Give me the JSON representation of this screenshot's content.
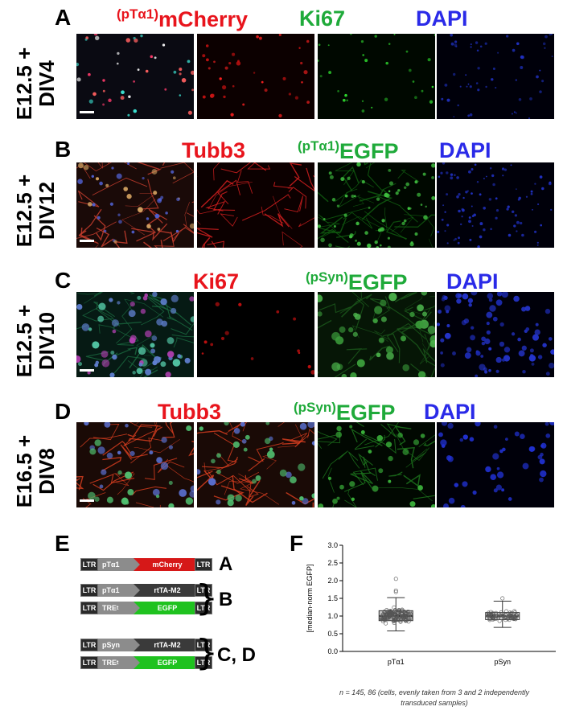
{
  "panels": [
    {
      "letter": "A",
      "row_label_line1": "E12.5 +",
      "row_label_line2": "DIV4",
      "channels": [
        {
          "prefix": "(pTα1)",
          "name": "mCherry",
          "color": "red"
        },
        {
          "prefix": "",
          "name": "Ki67",
          "color": "green"
        },
        {
          "prefix": "",
          "name": "DAPI",
          "color": "blue"
        }
      ]
    },
    {
      "letter": "B",
      "row_label_line1": "E12.5 +",
      "row_label_line2": "DIV12",
      "channels": [
        {
          "prefix": "",
          "name": "Tubb3",
          "color": "red"
        },
        {
          "prefix": "(pTα1)",
          "name": "EGFP",
          "color": "green"
        },
        {
          "prefix": "",
          "name": "DAPI",
          "color": "blue"
        }
      ]
    },
    {
      "letter": "C",
      "row_label_line1": "E12.5 +",
      "row_label_line2": "DIV10",
      "channels": [
        {
          "prefix": "",
          "name": "Ki67",
          "color": "red"
        },
        {
          "prefix": "(pSyn)",
          "name": "EGFP",
          "color": "green"
        },
        {
          "prefix": "",
          "name": "DAPI",
          "color": "blue"
        }
      ]
    },
    {
      "letter": "D",
      "row_label_line1": "E16.5 +",
      "row_label_line2": "DIV8",
      "channels": [
        {
          "prefix": "",
          "name": "Tubb3",
          "color": "red"
        },
        {
          "prefix": "(pSyn)",
          "name": "EGFP",
          "color": "green"
        },
        {
          "prefix": "",
          "name": "DAPI",
          "color": "blue"
        }
      ]
    }
  ],
  "constructs": {
    "letter": "E",
    "ltr": "LTR",
    "rows": [
      {
        "promoter": "pTα1",
        "gene": "mCherry",
        "gene_color": "#d61818"
      },
      {
        "promoter": "pTα1",
        "gene": "rtTA-M2",
        "gene_color": "#3a3a3a"
      },
      {
        "promoter": "TRE",
        "promoter_sub": "t",
        "gene": "EGFP",
        "gene_color": "#1fc21f"
      },
      {
        "promoter": "pSyn",
        "gene": "rtTA-M2",
        "gene_color": "#3a3a3a"
      },
      {
        "promoter": "TRE",
        "promoter_sub": "t",
        "gene": "EGFP",
        "gene_color": "#1fc21f"
      }
    ],
    "labels": [
      "A",
      "B",
      "C, D"
    ]
  },
  "plot": {
    "letter": "F",
    "footnote_line1": "n = 145, 86 (cells, evenly taken from 3 and 2 independently",
    "footnote_line2": "transduced samples)"
  },
  "colors": {
    "red": "#e8141c",
    "green": "#1faa3a",
    "blue": "#2a2ae8"
  },
  "chart_data": {
    "type": "box",
    "ylabel": "[median-norm EGFP]",
    "ylim": [
      0.0,
      3.0
    ],
    "yticks": [
      "0.0",
      "0.5",
      "1.0",
      "1.5",
      "2.0",
      "2.5",
      "3.0"
    ],
    "categories": [
      "pTα1",
      "pSyn"
    ],
    "boxes": [
      {
        "name": "pTα1",
        "n": 145,
        "min": 0.58,
        "q1": 0.87,
        "median": 1.0,
        "q3": 1.15,
        "max": 1.52,
        "outliers": [
          2.05,
          1.72,
          1.68
        ]
      },
      {
        "name": "pSyn",
        "n": 86,
        "min": 0.68,
        "q1": 0.9,
        "median": 1.0,
        "q3": 1.1,
        "max": 1.42,
        "outliers": [
          1.5
        ]
      }
    ]
  }
}
